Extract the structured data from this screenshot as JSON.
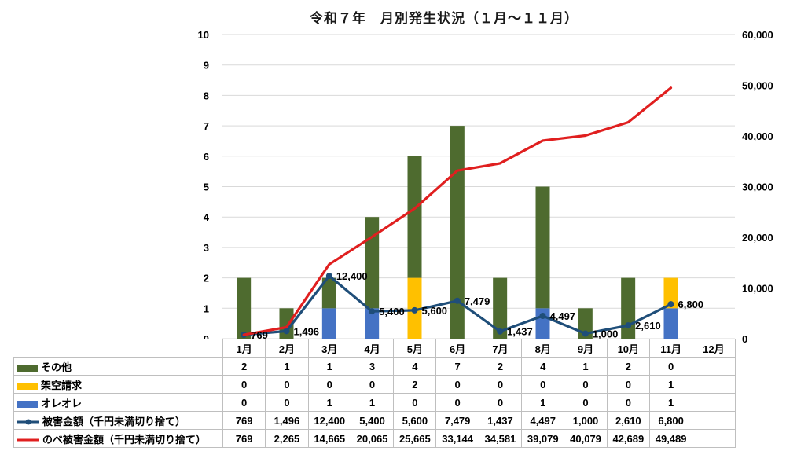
{
  "title": "令和７年　月別発生状況（１月～１１月）",
  "colors": {
    "bar_other": "#4e6b2f",
    "bar_kakuu": "#ffc000",
    "bar_oreore": "#4472c4",
    "line_higai": "#1f4e79",
    "line_nobe": "#e01f1f",
    "gridline": "#d9d9d9",
    "table_border": "#bfbfbf"
  },
  "chart_data": {
    "type": "bar",
    "subtype": "stacked-bars-with-two-lines-dual-axis",
    "title": "令和７年　月別発生状況（１月～１１月）",
    "categories": [
      "1月",
      "2月",
      "3月",
      "4月",
      "5月",
      "6月",
      "7月",
      "8月",
      "9月",
      "10月",
      "11月",
      "12月"
    ],
    "bar_series": [
      {
        "name": "その他",
        "color": "#4e6b2f",
        "axis": "left",
        "values": [
          2,
          1,
          1,
          3,
          4,
          7,
          2,
          4,
          1,
          2,
          0,
          null
        ]
      },
      {
        "name": "架空請求",
        "color": "#ffc000",
        "axis": "left",
        "values": [
          0,
          0,
          0,
          0,
          2,
          0,
          0,
          0,
          0,
          0,
          1,
          null
        ]
      },
      {
        "name": "オレオレ",
        "color": "#4472c4",
        "axis": "left",
        "values": [
          0,
          0,
          1,
          1,
          0,
          0,
          0,
          1,
          0,
          0,
          1,
          null
        ]
      }
    ],
    "line_series": [
      {
        "name": "被害金額（千円未満切り捨て）",
        "color": "#1f4e79",
        "axis": "right",
        "marker": true,
        "labels": true,
        "values": [
          769,
          1496,
          12400,
          5400,
          5600,
          7479,
          1437,
          4497,
          1000,
          2610,
          6800,
          null
        ]
      },
      {
        "name": "のべ被害金額（千円未満切り捨て）",
        "color": "#e01f1f",
        "axis": "right",
        "marker": false,
        "labels": false,
        "values": [
          769,
          2265,
          14665,
          20065,
          25665,
          33144,
          34581,
          39079,
          40079,
          42689,
          49489,
          null
        ]
      }
    ],
    "left_axis": {
      "min": 0,
      "max": 10,
      "step": 1
    },
    "right_axis": {
      "min": 0,
      "max": 60000,
      "step": 10000,
      "format": "comma"
    },
    "grid": "horizontal-only",
    "legend_position": "table-below"
  },
  "table": {
    "columns": [
      "1月",
      "2月",
      "3月",
      "4月",
      "5月",
      "6月",
      "7月",
      "8月",
      "9月",
      "10月",
      "11月",
      "12月"
    ],
    "rows": [
      {
        "label": "その他",
        "key": "bar",
        "color": "#4e6b2f",
        "values": [
          "2",
          "1",
          "1",
          "3",
          "4",
          "7",
          "2",
          "4",
          "1",
          "2",
          "0",
          ""
        ]
      },
      {
        "label": "架空請求",
        "key": "bar",
        "color": "#ffc000",
        "values": [
          "0",
          "0",
          "0",
          "0",
          "2",
          "0",
          "0",
          "0",
          "0",
          "0",
          "1",
          ""
        ]
      },
      {
        "label": "オレオレ",
        "key": "bar",
        "color": "#4472c4",
        "values": [
          "0",
          "0",
          "1",
          "1",
          "0",
          "0",
          "0",
          "1",
          "0",
          "0",
          "1",
          ""
        ]
      },
      {
        "label": "被害金額（千円未満切り捨て）",
        "key": "line-marker",
        "color": "#1f4e79",
        "values": [
          "769",
          "1,496",
          "12,400",
          "5,400",
          "5,600",
          "7,479",
          "1,437",
          "4,497",
          "1,000",
          "2,610",
          "6,800",
          ""
        ]
      },
      {
        "label": "のべ被害金額（千円未満切り捨て）",
        "key": "line",
        "color": "#e01f1f",
        "values": [
          "769",
          "2,265",
          "14,665",
          "20,065",
          "25,665",
          "33,144",
          "34,581",
          "39,079",
          "40,079",
          "42,689",
          "49,489",
          ""
        ]
      }
    ]
  }
}
